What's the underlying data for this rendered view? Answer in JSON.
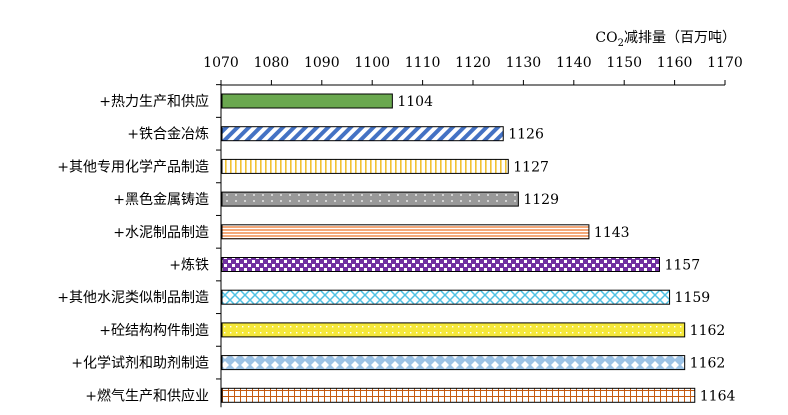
{
  "chart_data": {
    "type": "bar",
    "orientation": "horizontal",
    "title": "",
    "xlabel": "CO₂减排量（百万吨）",
    "ylabel": "",
    "xlim": [
      1070,
      1170
    ],
    "x_ticks": [
      "1070",
      "1080",
      "1090",
      "1100",
      "1110",
      "1120",
      "1130",
      "1140",
      "1150",
      "1160",
      "1170"
    ],
    "axis_position": "top",
    "grid": false,
    "legend": "none",
    "categories": [
      "+热力生产和供应",
      "+铁合金冶炼",
      "+其他专用化学产品制造",
      "+黑色金属铸造",
      "+水泥制品制造",
      "+炼铁",
      "+其他水泥类似制品制造",
      "+砼结构构件制造",
      "+化学试剂和助剂制造",
      "+燃气生产和供应业"
    ],
    "values": [
      1104,
      1126,
      1127,
      1129,
      1143,
      1157,
      1159,
      1162,
      1162,
      1164
    ],
    "value_labels": [
      "1104",
      "1126",
      "1127",
      "1129",
      "1143",
      "1157",
      "1159",
      "1162",
      "1162",
      "1164"
    ],
    "bar_styles": [
      {
        "pattern": "solid",
        "fill": "#6aa84f",
        "stroke": "#000000"
      },
      {
        "pattern": "diagonal-stripes",
        "fill": "#4472c4",
        "stroke": "#000000"
      },
      {
        "pattern": "vertical-stripes",
        "fill": "#f1c232",
        "stroke": "#000000"
      },
      {
        "pattern": "dots",
        "fill": "#999999",
        "stroke": "#000000"
      },
      {
        "pattern": "horizontal-stripes",
        "fill": "#f4a97a",
        "stroke": "#000000"
      },
      {
        "pattern": "checker",
        "fill": "#7030a0",
        "stroke": "#000000"
      },
      {
        "pattern": "crosshatch",
        "fill": "#4fc3e6",
        "stroke": "#000000"
      },
      {
        "pattern": "dotted-grid",
        "fill": "#f5e83a",
        "stroke": "#000000"
      },
      {
        "pattern": "diamonds",
        "fill": "#9dc3e6",
        "stroke": "#000000"
      },
      {
        "pattern": "grid",
        "fill": "#c55a11",
        "stroke": "#000000"
      }
    ]
  }
}
